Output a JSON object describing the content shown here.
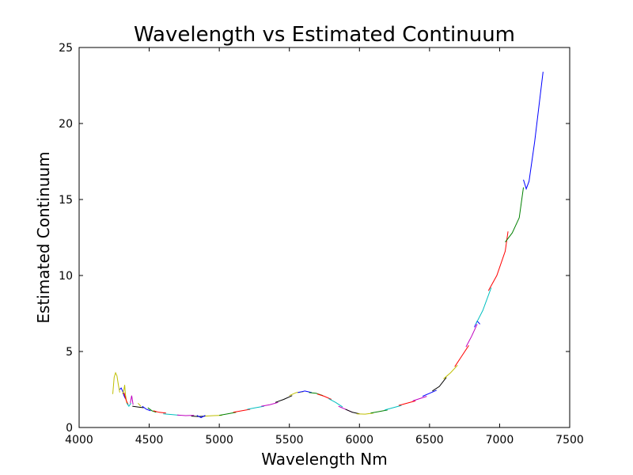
{
  "chart_data": {
    "type": "line",
    "title": "Wavelength vs Estimated Continuum",
    "xlabel": "Wavelength Nm",
    "ylabel": "Estimated Continuum",
    "xlim": [
      4000,
      7500
    ],
    "ylim": [
      0,
      25
    ],
    "xticks": [
      4000,
      4500,
      5000,
      5500,
      6000,
      6500,
      7000,
      7500
    ],
    "yticks": [
      0,
      5,
      10,
      15,
      20,
      25
    ],
    "grid": false,
    "legend": "none",
    "series": [
      {
        "color": "#bfbf00",
        "x": [
          4240,
          4250,
          4260,
          4270,
          4280,
          4290
        ],
        "y": [
          2.2,
          3.3,
          3.6,
          3.4,
          2.8,
          2.3
        ]
      },
      {
        "color": "#0000ff",
        "x": [
          4290,
          4300,
          4310,
          4320,
          4330
        ],
        "y": [
          2.5,
          2.6,
          2.4,
          2.1,
          1.9
        ]
      },
      {
        "color": "#bfbf00",
        "x": [
          4310,
          4320,
          4325,
          4330,
          4340
        ],
        "y": [
          2.2,
          2.5,
          2.8,
          2.2,
          1.6
        ]
      },
      {
        "color": "#ff0000",
        "x": [
          4320,
          4335,
          4350
        ],
        "y": [
          2.3,
          1.8,
          1.5
        ]
      },
      {
        "color": "#00bfbf",
        "x": [
          4340,
          4355,
          4370
        ],
        "y": [
          1.6,
          1.4,
          1.6
        ]
      },
      {
        "color": "#bf00bf",
        "x": [
          4365,
          4375,
          4385
        ],
        "y": [
          1.6,
          2.1,
          1.5
        ]
      },
      {
        "color": "#000000",
        "x": [
          4380,
          4420,
          4460
        ],
        "y": [
          1.4,
          1.35,
          1.3
        ]
      },
      {
        "color": "#bfbf00",
        "x": [
          4420,
          4440
        ],
        "y": [
          1.6,
          1.4
        ]
      },
      {
        "color": "#0000ff",
        "x": [
          4450,
          4480,
          4510
        ],
        "y": [
          1.4,
          1.2,
          1.1
        ]
      },
      {
        "color": "#008000",
        "x": [
          4490,
          4520,
          4550
        ],
        "y": [
          1.3,
          1.1,
          1.0
        ]
      },
      {
        "color": "#ff0000",
        "x": [
          4530,
          4570,
          4620
        ],
        "y": [
          1.1,
          1.0,
          0.95
        ]
      },
      {
        "color": "#00bfbf",
        "x": [
          4600,
          4660,
          4720
        ],
        "y": [
          0.9,
          0.85,
          0.8
        ]
      },
      {
        "color": "#bf00bf",
        "x": [
          4700,
          4760,
          4820
        ],
        "y": [
          0.82,
          0.78,
          0.8
        ]
      },
      {
        "color": "#000000",
        "x": [
          4800,
          4850,
          4900
        ],
        "y": [
          0.75,
          0.72,
          0.75
        ]
      },
      {
        "color": "#0000ff",
        "x": [
          4840,
          4870,
          4900
        ],
        "y": [
          0.8,
          0.65,
          0.8
        ]
      },
      {
        "color": "#bfbf00",
        "x": [
          4900,
          4960,
          5020
        ],
        "y": [
          0.75,
          0.78,
          0.8
        ]
      },
      {
        "color": "#008000",
        "x": [
          5000,
          5060,
          5120
        ],
        "y": [
          0.8,
          0.9,
          1.0
        ]
      },
      {
        "color": "#ff0000",
        "x": [
          5100,
          5160,
          5220
        ],
        "y": [
          1.0,
          1.1,
          1.2
        ]
      },
      {
        "color": "#00bfbf",
        "x": [
          5200,
          5260,
          5320
        ],
        "y": [
          1.2,
          1.3,
          1.4
        ]
      },
      {
        "color": "#bf00bf",
        "x": [
          5300,
          5360,
          5420
        ],
        "y": [
          1.4,
          1.5,
          1.65
        ]
      },
      {
        "color": "#000000",
        "x": [
          5400,
          5460,
          5520
        ],
        "y": [
          1.65,
          1.85,
          2.1
        ]
      },
      {
        "color": "#bfbf00",
        "x": [
          5500,
          5550,
          5600
        ],
        "y": [
          2.1,
          2.3,
          2.35
        ]
      },
      {
        "color": "#0000ff",
        "x": [
          5560,
          5610,
          5660
        ],
        "y": [
          2.3,
          2.4,
          2.3
        ]
      },
      {
        "color": "#008000",
        "x": [
          5640,
          5690,
          5740
        ],
        "y": [
          2.3,
          2.25,
          2.1
        ]
      },
      {
        "color": "#ff0000",
        "x": [
          5700,
          5750,
          5800
        ],
        "y": [
          2.2,
          2.05,
          1.85
        ]
      },
      {
        "color": "#00bfbf",
        "x": [
          5780,
          5830,
          5880
        ],
        "y": [
          1.9,
          1.65,
          1.35
        ]
      },
      {
        "color": "#bf00bf",
        "x": [
          5850,
          5900,
          5950
        ],
        "y": [
          1.4,
          1.2,
          1.0
        ]
      },
      {
        "color": "#000000",
        "x": [
          5900,
          5950,
          6000
        ],
        "y": [
          1.2,
          1.0,
          0.9
        ]
      },
      {
        "color": "#bfbf00",
        "x": [
          5980,
          6040,
          6100
        ],
        "y": [
          0.9,
          0.88,
          0.95
        ]
      },
      {
        "color": "#008000",
        "x": [
          6080,
          6140,
          6200
        ],
        "y": [
          0.95,
          1.05,
          1.15
        ]
      },
      {
        "color": "#00bfbf",
        "x": [
          6180,
          6240,
          6300
        ],
        "y": [
          1.15,
          1.3,
          1.45
        ]
      },
      {
        "color": "#ff0000",
        "x": [
          6280,
          6340,
          6400
        ],
        "y": [
          1.45,
          1.6,
          1.75
        ]
      },
      {
        "color": "#bf00bf",
        "x": [
          6380,
          6430,
          6480
        ],
        "y": [
          1.75,
          1.9,
          2.05
        ]
      },
      {
        "color": "#0000ff",
        "x": [
          6450,
          6500,
          6550
        ],
        "y": [
          2.05,
          2.25,
          2.45
        ]
      },
      {
        "color": "#000000",
        "x": [
          6520,
          6570,
          6620
        ],
        "y": [
          2.4,
          2.7,
          3.3
        ]
      },
      {
        "color": "#bfbf00",
        "x": [
          6600,
          6650,
          6700
        ],
        "y": [
          3.2,
          3.6,
          4.1
        ]
      },
      {
        "color": "#ff0000",
        "x": [
          6680,
          6730,
          6780
        ],
        "y": [
          4.0,
          4.7,
          5.4
        ]
      },
      {
        "color": "#bf00bf",
        "x": [
          6760,
          6800,
          6840
        ],
        "y": [
          5.3,
          6.0,
          6.8
        ]
      },
      {
        "color": "#0000ff",
        "x": [
          6820,
          6840,
          6860
        ],
        "y": [
          6.6,
          7.0,
          6.8
        ]
      },
      {
        "color": "#00bfbf",
        "x": [
          6830,
          6880,
          6940
        ],
        "y": [
          6.8,
          7.7,
          9.2
        ]
      },
      {
        "color": "#ff0000",
        "x": [
          6920,
          6980,
          7040,
          7060
        ],
        "y": [
          9.0,
          10.0,
          11.6,
          12.9
        ]
      },
      {
        "color": "#008000",
        "x": [
          7040,
          7090,
          7140,
          7170
        ],
        "y": [
          12.2,
          12.8,
          13.8,
          15.8
        ]
      },
      {
        "color": "#0000ff",
        "x": [
          7170,
          7190,
          7210,
          7250,
          7310
        ],
        "y": [
          16.3,
          15.7,
          16.2,
          18.8,
          23.4
        ]
      }
    ]
  }
}
